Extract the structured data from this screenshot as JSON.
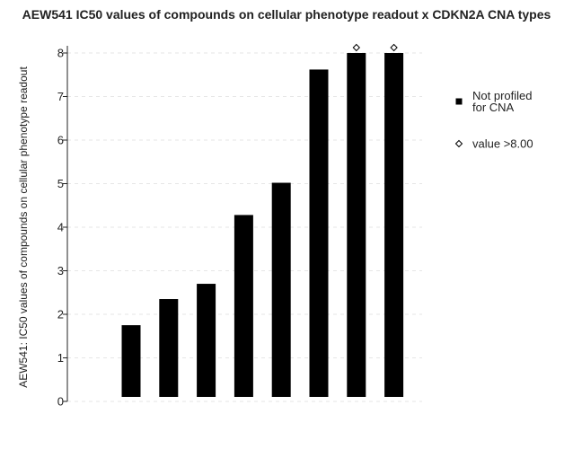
{
  "chart_data": {
    "type": "bar",
    "title": "AEW541 IC50 values of compounds on cellular phenotype readout x CDKN2A CNA types",
    "xlabel": "",
    "ylabel": "AEW541: IC50 values of compounds on cellular phenotype readout",
    "ylim": [
      0,
      8
    ],
    "yticks": [
      0,
      1,
      2,
      3,
      4,
      5,
      6,
      7,
      8
    ],
    "grid": true,
    "legend_position": "right",
    "series": [
      {
        "name": "Not profiled for CNA",
        "color": "#000000",
        "values": [
          1.75,
          2.35,
          2.7,
          4.28,
          5.02,
          7.62,
          8.0,
          8.0
        ]
      }
    ],
    "markers": {
      "name": "value >8.00",
      "symbol": "diamond",
      "indices": [
        6,
        7
      ]
    },
    "legend": [
      {
        "label_lines": [
          "Not profiled",
          "for CNA"
        ],
        "symbol": "square"
      },
      {
        "label_lines": [
          "value >8.00"
        ],
        "symbol": "diamond"
      }
    ]
  }
}
